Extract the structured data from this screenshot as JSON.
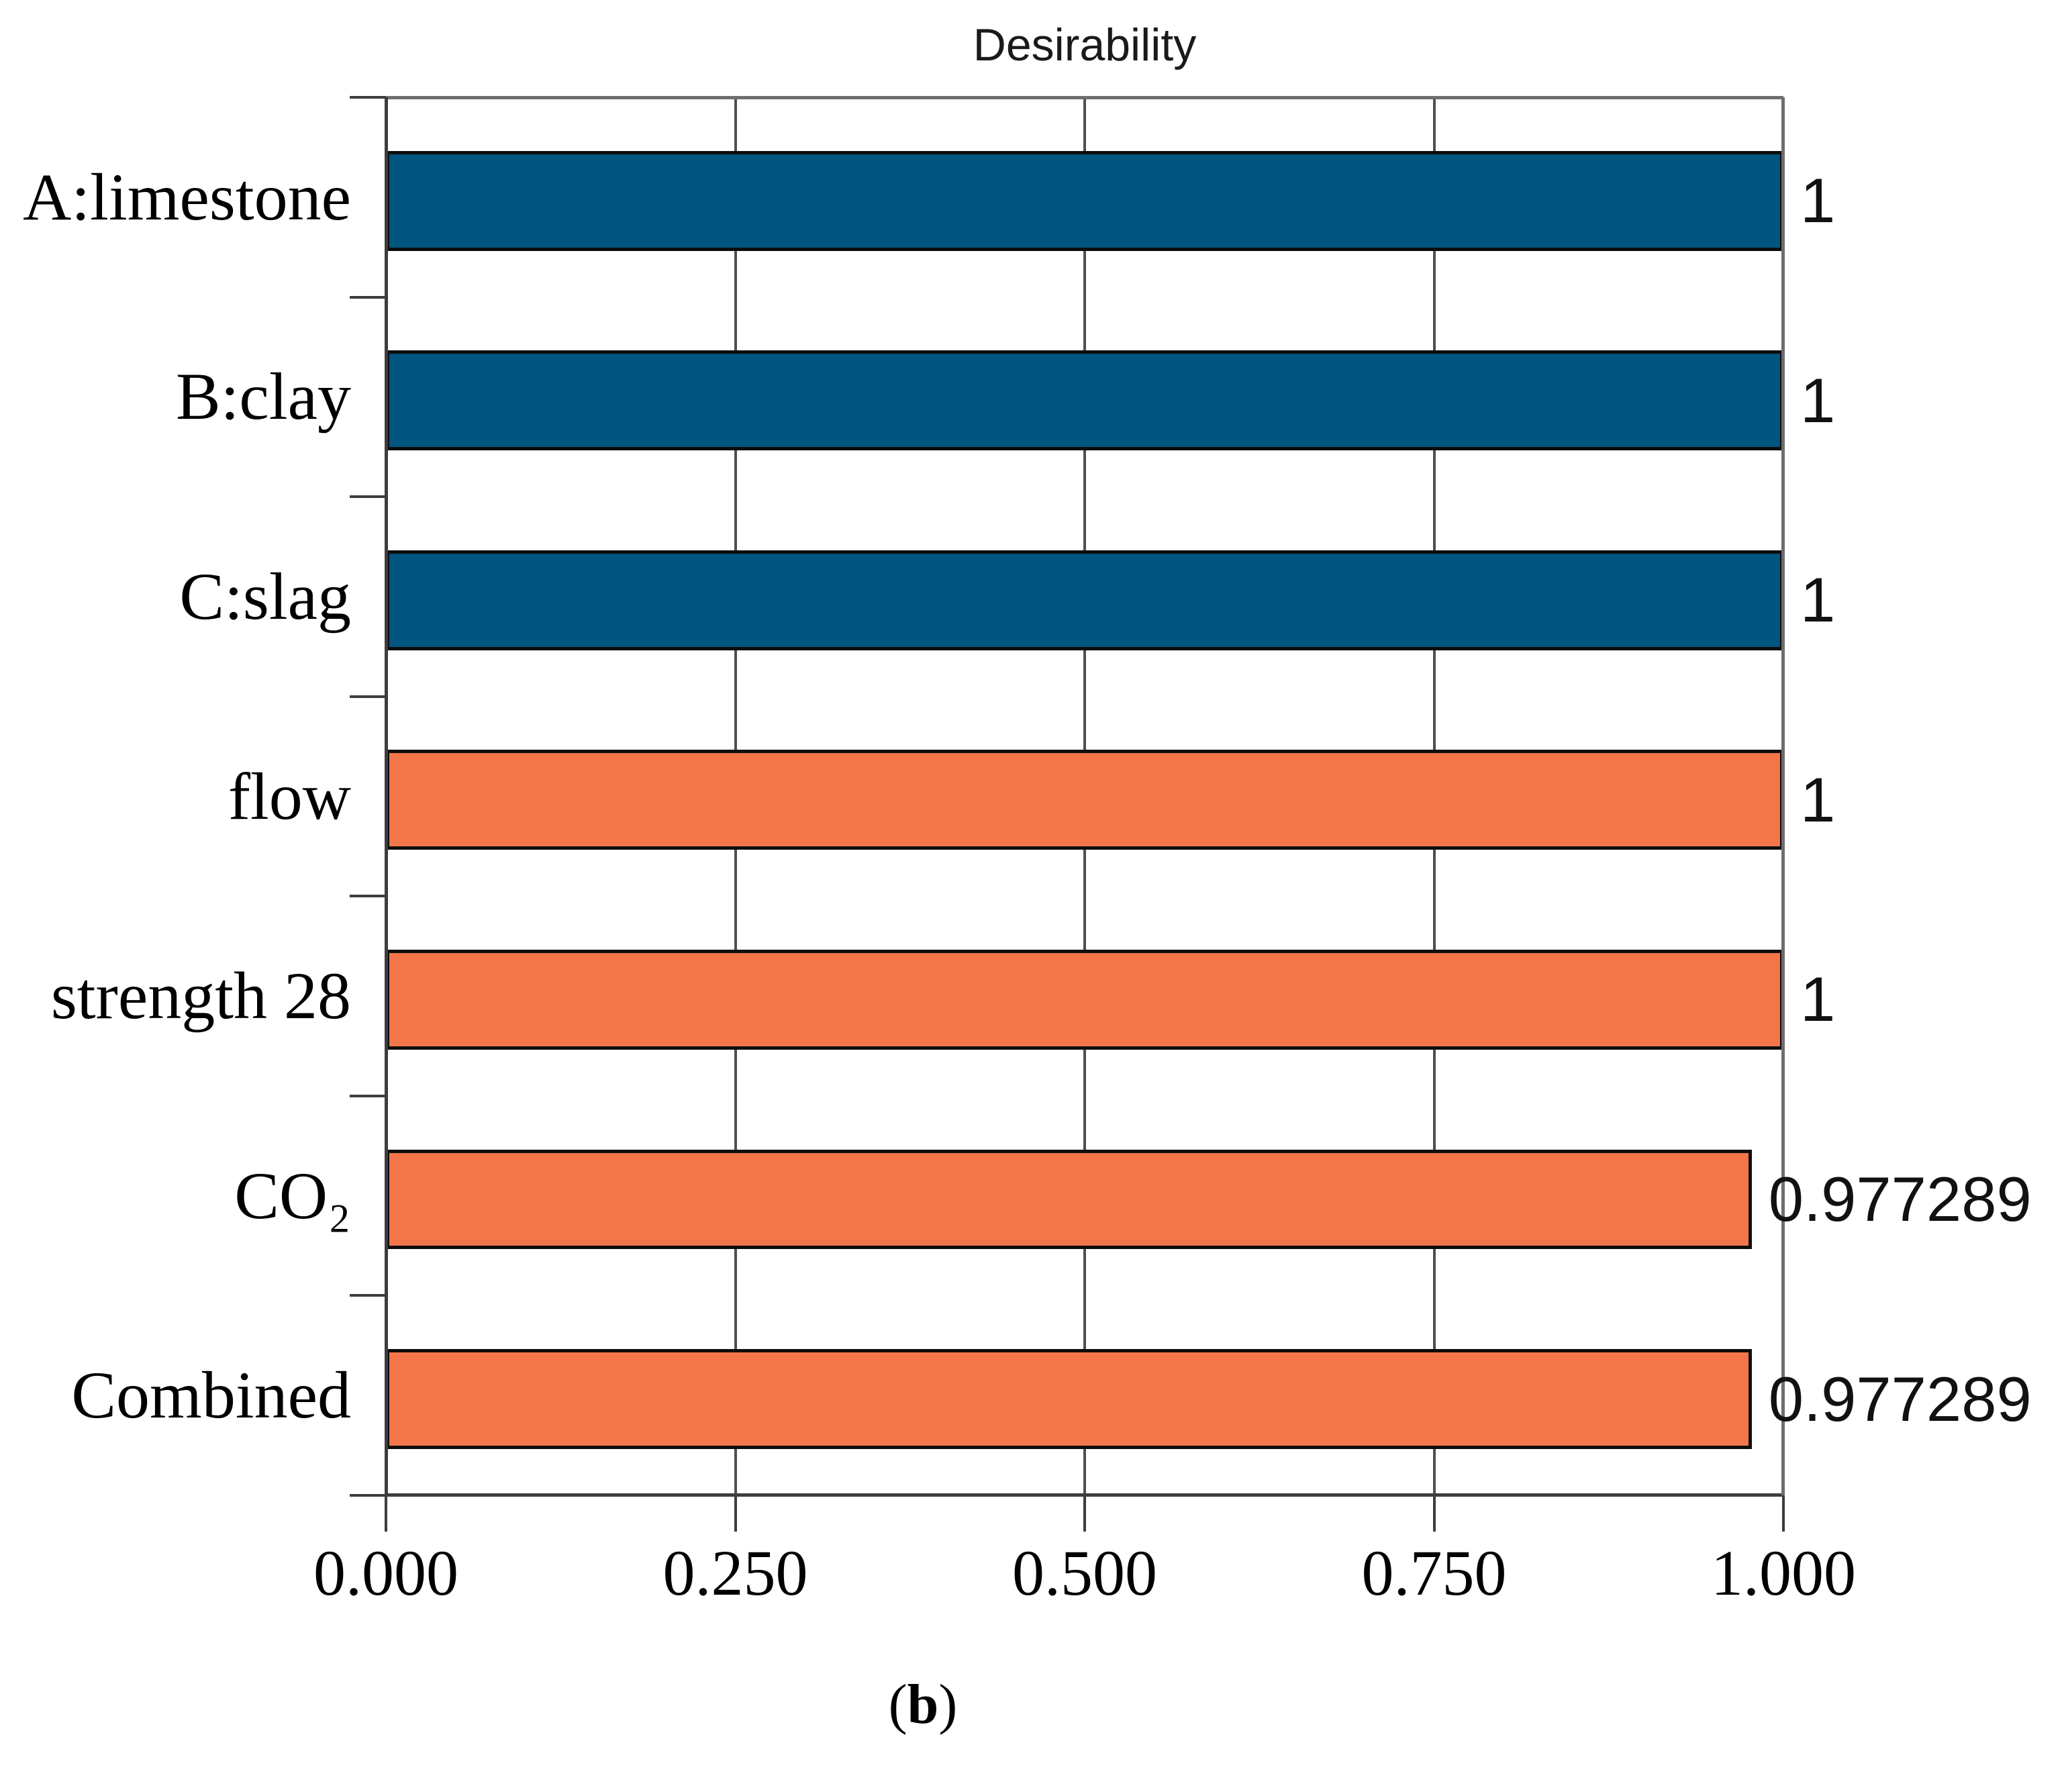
{
  "chart_data": {
    "type": "bar",
    "orientation": "horizontal",
    "title": "Desirability",
    "categories": [
      "A:limestone",
      "B:clay",
      "C:slag",
      "flow",
      "strength 28",
      "CO₂",
      "Combined"
    ],
    "values": [
      1,
      1,
      1,
      1,
      1,
      0.977289,
      0.977289
    ],
    "value_labels": [
      "1",
      "1",
      "1",
      "1",
      "1",
      "0.977289",
      "0.977289"
    ],
    "bar_colors": [
      "#01557E",
      "#01557E",
      "#01557E",
      "#F3764A",
      "#F3764A",
      "#F3764A",
      "#F3764A"
    ],
    "series_color_legend": {
      "factors_blue": "#01557E",
      "responses_orange": "#F3764A"
    },
    "xlim": [
      0,
      1
    ],
    "xtick_values": [
      0,
      0.25,
      0.5,
      0.75,
      1
    ],
    "xtick_labels": [
      "0.000",
      "0.250",
      "0.500",
      "0.750",
      "1.000"
    ],
    "gridlines": [
      0.25,
      0.5,
      0.75
    ],
    "grid": true,
    "legend_position": "none"
  },
  "caption": {
    "open": "(",
    "letter": "b",
    "close": ")"
  }
}
